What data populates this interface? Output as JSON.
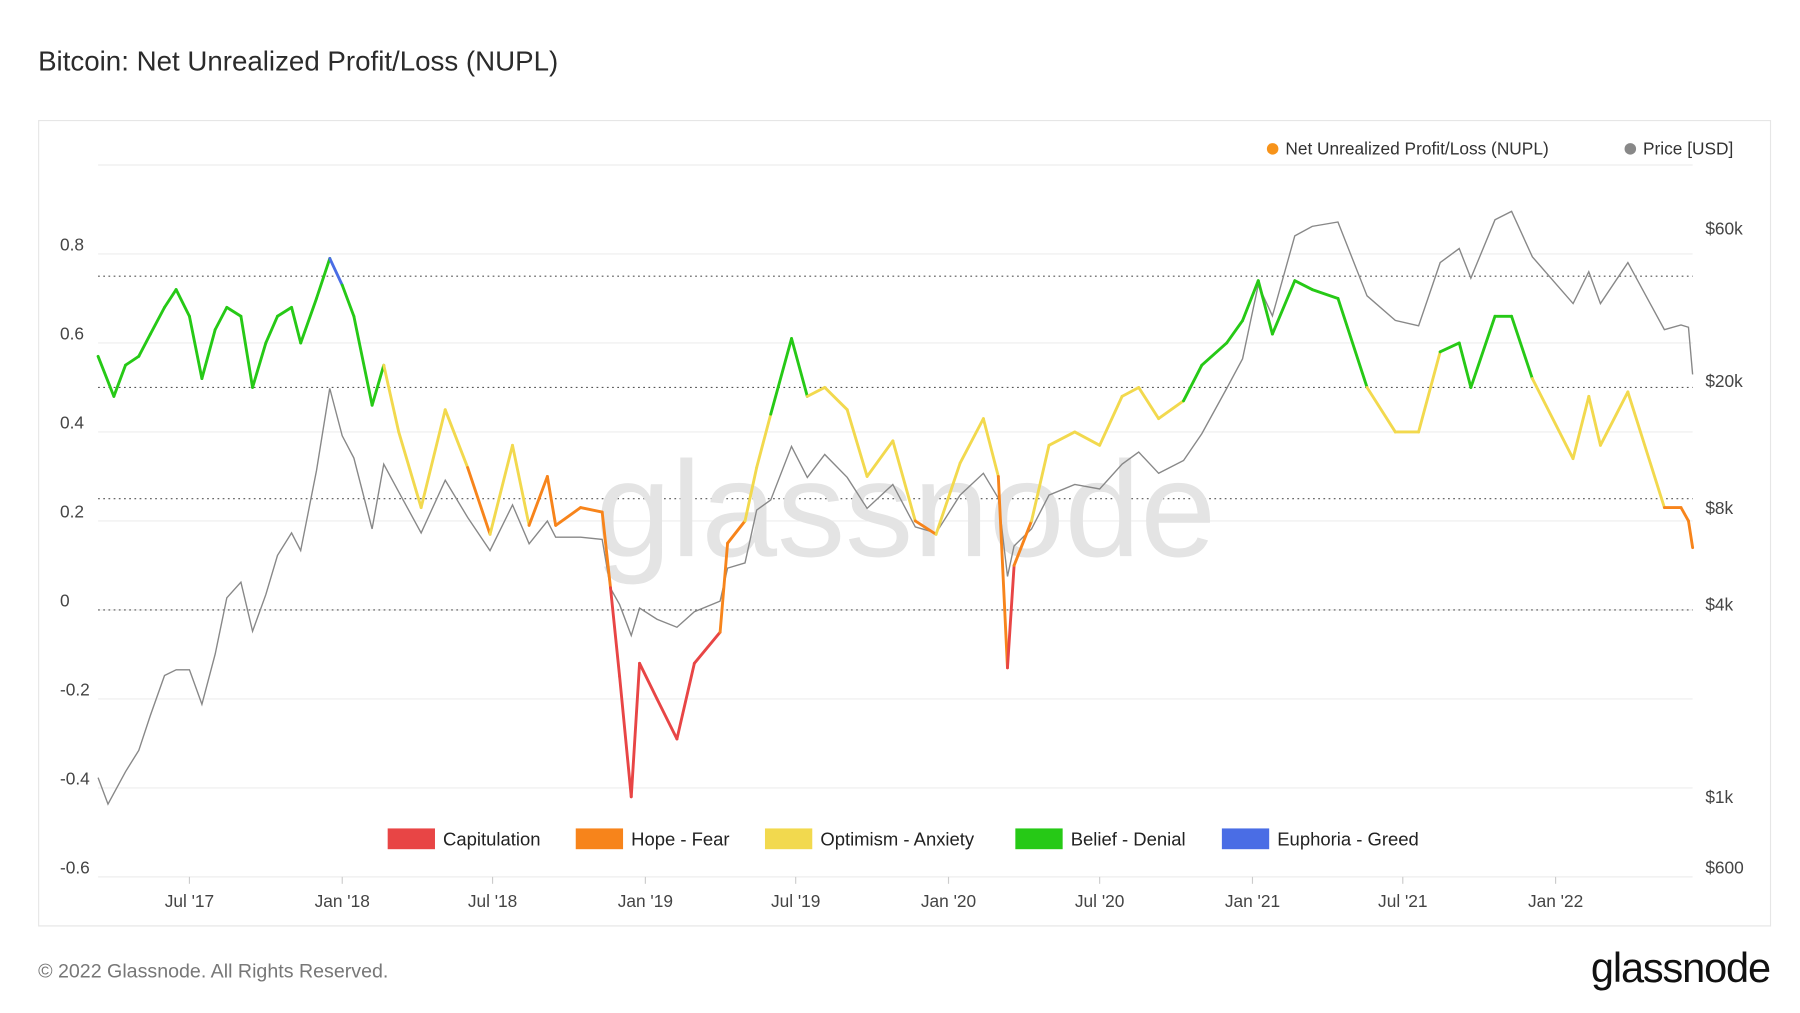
{
  "title": "Bitcoin: Net Unrealized Profit/Loss (NUPL)",
  "footer": {
    "copyright": "© 2022 Glassnode. All Rights Reserved.",
    "logo": "glassnode"
  },
  "watermark": "glassnode",
  "chart_data": {
    "type": "line",
    "title": "Bitcoin: Net Unrealized Profit/Loss (NUPL)",
    "legend_top": [
      {
        "name": "Net Unrealized Profit/Loss (NUPL)",
        "color": "#f7931a"
      },
      {
        "name": "Price [USD]",
        "color": "#888888"
      }
    ],
    "zones": [
      {
        "name": "Capitulation",
        "color": "#e84545",
        "range": [
          -1,
          0
        ]
      },
      {
        "name": "Hope - Fear",
        "color": "#f7841b",
        "range": [
          0,
          0.25
        ]
      },
      {
        "name": "Optimism - Anxiety",
        "color": "#f2d94e",
        "range": [
          0.25,
          0.5
        ]
      },
      {
        "name": "Belief - Denial",
        "color": "#26c916",
        "range": [
          0.5,
          0.75
        ]
      },
      {
        "name": "Euphoria - Greed",
        "color": "#4a6de5",
        "range": [
          0.75,
          1
        ]
      }
    ],
    "legend_position": "bottom",
    "x_range": [
      "2017-03-13",
      "2022-06-15"
    ],
    "x_ticks": [
      {
        "date": "2017-07-01",
        "label": "Jul '17"
      },
      {
        "date": "2018-01-01",
        "label": "Jan '18"
      },
      {
        "date": "2018-07-01",
        "label": "Jul '18"
      },
      {
        "date": "2019-01-01",
        "label": "Jan '19"
      },
      {
        "date": "2019-07-01",
        "label": "Jul '19"
      },
      {
        "date": "2020-01-01",
        "label": "Jan '20"
      },
      {
        "date": "2020-07-01",
        "label": "Jul '20"
      },
      {
        "date": "2021-01-01",
        "label": "Jan '21"
      },
      {
        "date": "2021-07-01",
        "label": "Jul '21"
      },
      {
        "date": "2022-01-01",
        "label": "Jan '22"
      }
    ],
    "y_left": {
      "range": [
        -0.6,
        1.0
      ],
      "ticks": [
        {
          "v": 0.8,
          "label": "0.8"
        },
        {
          "v": 0.6,
          "label": "0.6"
        },
        {
          "v": 0.4,
          "label": "0.4"
        },
        {
          "v": 0.2,
          "label": "0.2"
        },
        {
          "v": 0,
          "label": "0"
        },
        {
          "v": -0.2,
          "label": "-0.2"
        },
        {
          "v": -0.4,
          "label": "-0.4"
        },
        {
          "v": -0.6,
          "label": "-0.6"
        }
      ],
      "reference_lines": [
        0.75,
        0.5,
        0.25,
        0
      ]
    },
    "y_right": {
      "scale": "log",
      "ticks": [
        {
          "v": 60000,
          "label": "$60k"
        },
        {
          "v": 20000,
          "label": "$20k"
        },
        {
          "v": 8000,
          "label": "$8k"
        },
        {
          "v": 4000,
          "label": "$4k"
        },
        {
          "v": 1000,
          "label": "$1k"
        },
        {
          "v": 600,
          "label": "$600"
        }
      ]
    },
    "grid": true,
    "series": [
      {
        "name": "Net Unrealized Profit/Loss (NUPL)",
        "axis": "left",
        "points": [
          [
            "2017-03-13",
            0.57
          ],
          [
            "2017-04-01",
            0.48
          ],
          [
            "2017-04-15",
            0.55
          ],
          [
            "2017-05-01",
            0.57
          ],
          [
            "2017-05-15",
            0.62
          ],
          [
            "2017-06-01",
            0.68
          ],
          [
            "2017-06-15",
            0.72
          ],
          [
            "2017-07-01",
            0.66
          ],
          [
            "2017-07-16",
            0.52
          ],
          [
            "2017-08-01",
            0.63
          ],
          [
            "2017-08-15",
            0.68
          ],
          [
            "2017-09-01",
            0.66
          ],
          [
            "2017-09-15",
            0.5
          ],
          [
            "2017-10-01",
            0.6
          ],
          [
            "2017-10-15",
            0.66
          ],
          [
            "2017-11-01",
            0.68
          ],
          [
            "2017-11-12",
            0.6
          ],
          [
            "2017-12-01",
            0.7
          ],
          [
            "2017-12-17",
            0.79
          ],
          [
            "2018-01-01",
            0.73
          ],
          [
            "2018-01-15",
            0.66
          ],
          [
            "2018-02-06",
            0.46
          ],
          [
            "2018-02-20",
            0.55
          ],
          [
            "2018-03-10",
            0.4
          ],
          [
            "2018-04-06",
            0.23
          ],
          [
            "2018-05-05",
            0.45
          ],
          [
            "2018-06-01",
            0.32
          ],
          [
            "2018-06-28",
            0.17
          ],
          [
            "2018-07-25",
            0.37
          ],
          [
            "2018-08-14",
            0.19
          ],
          [
            "2018-09-05",
            0.3
          ],
          [
            "2018-09-15",
            0.19
          ],
          [
            "2018-10-15",
            0.23
          ],
          [
            "2018-11-10",
            0.22
          ],
          [
            "2018-11-20",
            0.05
          ],
          [
            "2018-12-01",
            -0.15
          ],
          [
            "2018-12-15",
            -0.42
          ],
          [
            "2018-12-25",
            -0.12
          ],
          [
            "2019-01-15",
            -0.2
          ],
          [
            "2019-02-08",
            -0.29
          ],
          [
            "2019-03-01",
            -0.12
          ],
          [
            "2019-04-01",
            -0.05
          ],
          [
            "2019-04-10",
            0.15
          ],
          [
            "2019-05-01",
            0.2
          ],
          [
            "2019-05-15",
            0.32
          ],
          [
            "2019-06-01",
            0.44
          ],
          [
            "2019-06-26",
            0.61
          ],
          [
            "2019-07-15",
            0.48
          ],
          [
            "2019-08-05",
            0.5
          ],
          [
            "2019-09-01",
            0.45
          ],
          [
            "2019-09-25",
            0.3
          ],
          [
            "2019-10-26",
            0.38
          ],
          [
            "2019-11-22",
            0.2
          ],
          [
            "2019-12-17",
            0.17
          ],
          [
            "2020-01-15",
            0.33
          ],
          [
            "2020-02-12",
            0.43
          ],
          [
            "2020-03-01",
            0.3
          ],
          [
            "2020-03-12",
            -0.13
          ],
          [
            "2020-03-20",
            0.1
          ],
          [
            "2020-04-10",
            0.2
          ],
          [
            "2020-05-01",
            0.37
          ],
          [
            "2020-06-01",
            0.4
          ],
          [
            "2020-07-01",
            0.37
          ],
          [
            "2020-07-28",
            0.48
          ],
          [
            "2020-08-17",
            0.5
          ],
          [
            "2020-09-10",
            0.43
          ],
          [
            "2020-10-10",
            0.47
          ],
          [
            "2020-11-01",
            0.55
          ],
          [
            "2020-12-01",
            0.6
          ],
          [
            "2020-12-20",
            0.65
          ],
          [
            "2021-01-08",
            0.74
          ],
          [
            "2021-01-25",
            0.62
          ],
          [
            "2021-02-21",
            0.74
          ],
          [
            "2021-03-14",
            0.72
          ],
          [
            "2021-04-14",
            0.7
          ],
          [
            "2021-05-19",
            0.5
          ],
          [
            "2021-06-22",
            0.4
          ],
          [
            "2021-07-20",
            0.4
          ],
          [
            "2021-08-15",
            0.58
          ],
          [
            "2021-09-07",
            0.6
          ],
          [
            "2021-09-21",
            0.5
          ],
          [
            "2021-10-20",
            0.66
          ],
          [
            "2021-11-09",
            0.66
          ],
          [
            "2021-12-04",
            0.52
          ],
          [
            "2022-01-22",
            0.34
          ],
          [
            "2022-02-10",
            0.48
          ],
          [
            "2022-02-24",
            0.37
          ],
          [
            "2022-03-29",
            0.49
          ],
          [
            "2022-05-12",
            0.23
          ],
          [
            "2022-06-01",
            0.23
          ],
          [
            "2022-06-10",
            0.2
          ],
          [
            "2022-06-15",
            0.14
          ]
        ]
      },
      {
        "name": "Price [USD]",
        "axis": "right",
        "color": "#888888",
        "points": [
          [
            "2017-03-13",
            1150
          ],
          [
            "2017-03-25",
            950
          ],
          [
            "2017-04-15",
            1200
          ],
          [
            "2017-05-01",
            1400
          ],
          [
            "2017-05-15",
            1800
          ],
          [
            "2017-06-01",
            2400
          ],
          [
            "2017-06-15",
            2500
          ],
          [
            "2017-07-01",
            2500
          ],
          [
            "2017-07-16",
            1950
          ],
          [
            "2017-08-01",
            2800
          ],
          [
            "2017-08-15",
            4200
          ],
          [
            "2017-09-01",
            4700
          ],
          [
            "2017-09-15",
            3300
          ],
          [
            "2017-10-01",
            4300
          ],
          [
            "2017-10-15",
            5700
          ],
          [
            "2017-11-01",
            6700
          ],
          [
            "2017-11-12",
            5900
          ],
          [
            "2017-12-01",
            10500
          ],
          [
            "2017-12-17",
            19000
          ],
          [
            "2018-01-01",
            13500
          ],
          [
            "2018-01-15",
            11500
          ],
          [
            "2018-02-06",
            6900
          ],
          [
            "2018-02-20",
            11000
          ],
          [
            "2018-03-10",
            9000
          ],
          [
            "2018-04-06",
            6700
          ],
          [
            "2018-05-05",
            9800
          ],
          [
            "2018-06-01",
            7500
          ],
          [
            "2018-06-28",
            5900
          ],
          [
            "2018-07-25",
            8200
          ],
          [
            "2018-08-14",
            6200
          ],
          [
            "2018-09-05",
            7300
          ],
          [
            "2018-09-15",
            6500
          ],
          [
            "2018-10-15",
            6500
          ],
          [
            "2018-11-10",
            6400
          ],
          [
            "2018-11-20",
            4500
          ],
          [
            "2018-12-01",
            4000
          ],
          [
            "2018-12-15",
            3200
          ],
          [
            "2018-12-25",
            3900
          ],
          [
            "2019-01-15",
            3600
          ],
          [
            "2019-02-08",
            3400
          ],
          [
            "2019-03-01",
            3800
          ],
          [
            "2019-04-01",
            4100
          ],
          [
            "2019-04-10",
            5200
          ],
          [
            "2019-05-01",
            5400
          ],
          [
            "2019-05-15",
            7900
          ],
          [
            "2019-06-01",
            8500
          ],
          [
            "2019-06-26",
            12500
          ],
          [
            "2019-07-15",
            10000
          ],
          [
            "2019-08-05",
            11800
          ],
          [
            "2019-09-01",
            10000
          ],
          [
            "2019-09-25",
            8000
          ],
          [
            "2019-10-26",
            9500
          ],
          [
            "2019-11-22",
            7000
          ],
          [
            "2019-12-17",
            6700
          ],
          [
            "2020-01-15",
            8800
          ],
          [
            "2020-02-12",
            10300
          ],
          [
            "2020-03-01",
            8600
          ],
          [
            "2020-03-12",
            4900
          ],
          [
            "2020-03-20",
            6100
          ],
          [
            "2020-04-10",
            6900
          ],
          [
            "2020-05-01",
            8800
          ],
          [
            "2020-06-01",
            9500
          ],
          [
            "2020-07-01",
            9200
          ],
          [
            "2020-07-28",
            11000
          ],
          [
            "2020-08-17",
            12000
          ],
          [
            "2020-09-10",
            10300
          ],
          [
            "2020-10-10",
            11300
          ],
          [
            "2020-11-01",
            13700
          ],
          [
            "2020-12-01",
            19000
          ],
          [
            "2020-12-20",
            23500
          ],
          [
            "2021-01-08",
            40000
          ],
          [
            "2021-01-25",
            32000
          ],
          [
            "2021-02-21",
            57000
          ],
          [
            "2021-03-14",
            61000
          ],
          [
            "2021-04-14",
            63000
          ],
          [
            "2021-05-19",
            37000
          ],
          [
            "2021-06-22",
            31000
          ],
          [
            "2021-07-20",
            29800
          ],
          [
            "2021-08-15",
            47000
          ],
          [
            "2021-09-07",
            52000
          ],
          [
            "2021-09-21",
            42000
          ],
          [
            "2021-10-20",
            64000
          ],
          [
            "2021-11-09",
            68000
          ],
          [
            "2021-12-04",
            49000
          ],
          [
            "2022-01-22",
            35000
          ],
          [
            "2022-02-10",
            44000
          ],
          [
            "2022-02-24",
            35000
          ],
          [
            "2022-03-29",
            47000
          ],
          [
            "2022-05-12",
            29000
          ],
          [
            "2022-06-01",
            30000
          ],
          [
            "2022-06-10",
            29500
          ],
          [
            "2022-06-15",
            21000
          ]
        ]
      }
    ]
  }
}
